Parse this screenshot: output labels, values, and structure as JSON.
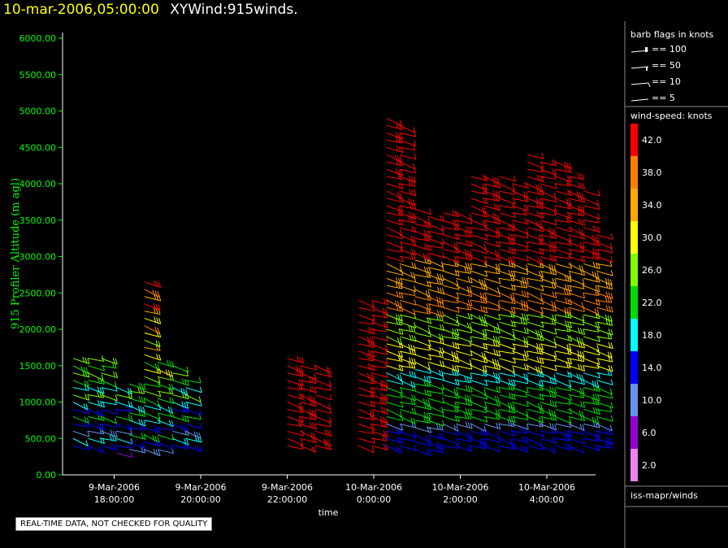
{
  "title": {
    "time": "10-mar-2006,05:00:00",
    "name": "XYWind:915winds."
  },
  "disclaimer": "REAL-TIME DATA, NOT CHECKED FOR QUALITY",
  "chart_data": {
    "type": "scatter",
    "xlabel": "time",
    "ylabel": "915 Profiler Altitude (m agl)",
    "ylim": [
      0,
      6200
    ],
    "y_ticks": [
      "0.00",
      "500.00",
      "1000.00",
      "1500.00",
      "2000.00",
      "2500.00",
      "3000.00",
      "3500.00",
      "4000.00",
      "4500.00",
      "5000.00",
      "5500.00",
      "6000.00"
    ],
    "x_ticks": [
      {
        "date": "9-Mar-2006",
        "time": "18:00:00"
      },
      {
        "date": "9-Mar-2006",
        "time": "20:00:00"
      },
      {
        "date": "9-Mar-2006",
        "time": "22:00:00"
      },
      {
        "date": "10-Mar-2006",
        "time": "0:00:00"
      },
      {
        "date": "10-Mar-2006",
        "time": "2:00:00"
      },
      {
        "date": "10-Mar-2006",
        "time": "4:00:00"
      }
    ],
    "barb_legend": {
      "title": "barb flags in knots",
      "entries": [
        "== 100",
        "== 50",
        "== 10",
        "== 5"
      ]
    },
    "color_legend": {
      "title": "wind-speed: knots",
      "levels": [
        {
          "value": "42.0",
          "color": "#ff0000"
        },
        {
          "value": "38.0",
          "color": "#ff7f00"
        },
        {
          "value": "34.0",
          "color": "#ffaa00"
        },
        {
          "value": "30.0",
          "color": "#ffff00"
        },
        {
          "value": "26.0",
          "color": "#7fff00"
        },
        {
          "value": "22.0",
          "color": "#00dd00"
        },
        {
          "value": "18.0",
          "color": "#00ffff"
        },
        {
          "value": "14.0",
          "color": "#0000ff"
        },
        {
          "value": "10.0",
          "color": "#6495ed"
        },
        {
          "value": "6.0",
          "color": "#9400d3"
        },
        {
          "value": "2.0",
          "color": "#ee82ee"
        }
      ]
    },
    "source": "iss-mapr/winds",
    "profiles": [
      {
        "hour": -6.95,
        "bottom": 400,
        "top": 1650
      },
      {
        "hour": -6.6,
        "bottom": 400,
        "top": 1650
      },
      {
        "hour": -6.3,
        "bottom": 400,
        "top": 1650
      },
      {
        "hour": -5.95,
        "bottom": 300,
        "top": 1250
      },
      {
        "hour": -5.65,
        "bottom": 350,
        "top": 1250
      },
      {
        "hour": -5.3,
        "bottom": 350,
        "top": 2700
      },
      {
        "hour": -5.0,
        "bottom": 350,
        "top": 1600
      },
      {
        "hour": -4.65,
        "bottom": 400,
        "top": 1500
      },
      {
        "hour": -4.35,
        "bottom": 400,
        "top": 1350
      },
      {
        "hour": -2.0,
        "bottom": 400,
        "top": 1600
      },
      {
        "hour": -1.7,
        "bottom": 400,
        "top": 1550
      },
      {
        "hour": -1.35,
        "bottom": 400,
        "top": 1550
      },
      {
        "hour": -0.35,
        "bottom": 400,
        "top": 2450
      },
      {
        "hour": -0.05,
        "bottom": 400,
        "top": 2450
      },
      {
        "hour": 0.3,
        "bottom": 400,
        "top": 4900
      },
      {
        "hour": 0.6,
        "bottom": 400,
        "top": 4850
      },
      {
        "hour": 0.95,
        "bottom": 350,
        "top": 3650
      },
      {
        "hour": 1.25,
        "bottom": 350,
        "top": 3600
      },
      {
        "hour": 1.6,
        "bottom": 400,
        "top": 3650
      },
      {
        "hour": 1.9,
        "bottom": 400,
        "top": 3600
      },
      {
        "hour": 2.25,
        "bottom": 400,
        "top": 4150
      },
      {
        "hour": 2.55,
        "bottom": 400,
        "top": 4100
      },
      {
        "hour": 2.9,
        "bottom": 400,
        "top": 4150
      },
      {
        "hour": 3.2,
        "bottom": 400,
        "top": 4000
      },
      {
        "hour": 3.55,
        "bottom": 400,
        "top": 4400
      },
      {
        "hour": 3.85,
        "bottom": 400,
        "top": 4350
      },
      {
        "hour": 4.2,
        "bottom": 400,
        "top": 4350
      },
      {
        "hour": 4.5,
        "bottom": 400,
        "top": 4100
      },
      {
        "hour": 4.85,
        "bottom": 400,
        "top": 3950
      },
      {
        "hour": 5.15,
        "bottom": 400,
        "top": 3350
      }
    ]
  }
}
